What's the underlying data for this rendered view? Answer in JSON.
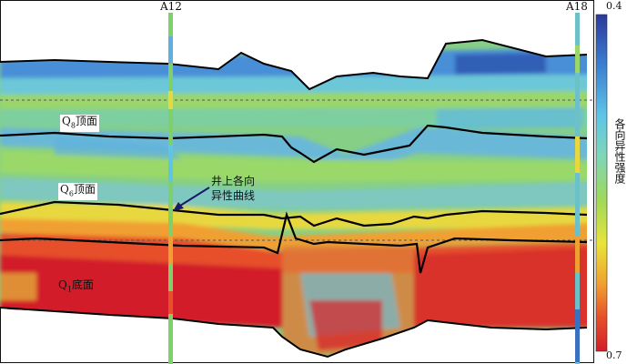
{
  "wells": [
    {
      "name": "A12"
    },
    {
      "name": "A18"
    }
  ],
  "horizons": [
    {
      "label": "Q",
      "sub": "8",
      "suffix": "顶面"
    },
    {
      "label": "Q",
      "sub": "6",
      "suffix": "顶面"
    },
    {
      "label": "Q",
      "sub": "1",
      "suffix": "底面"
    }
  ],
  "callout": {
    "line1": "井上各向",
    "line2": "异性曲线"
  },
  "colorbar": {
    "top_value": "0.4",
    "bottom_value": "0.7",
    "title": "各向异性强度",
    "colors": [
      "#2a3a9a",
      "#3b7fd0",
      "#5fc4e6",
      "#7fd6b8",
      "#9fd85a",
      "#e8e43a",
      "#f0a030",
      "#e6502a",
      "#d21e2a"
    ]
  }
}
